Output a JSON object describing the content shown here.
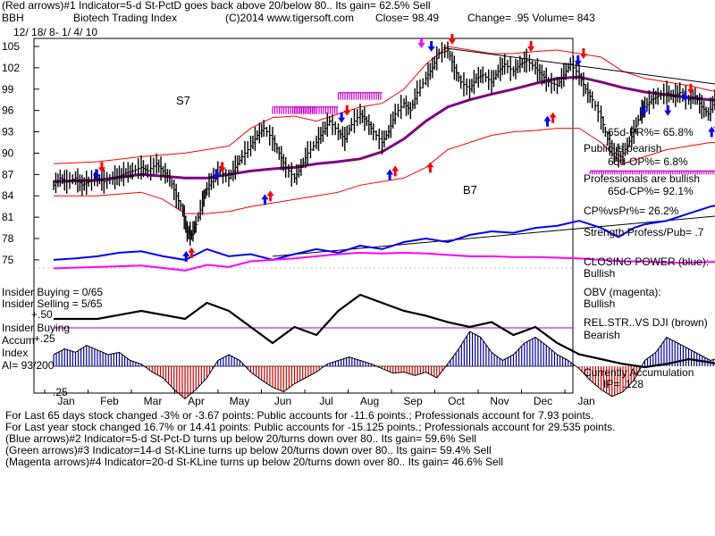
{
  "header": {
    "line1": "(Red arrows)#1 Indicator=5-d St-PctD goes back above 20/below 80.. Its gain= 62.5% Sell",
    "ticker": "BBH",
    "name": "Biotech Trading Index",
    "copyright": "(C)2014 www.tigersoft.com",
    "close": "Close=  98.49",
    "change": "Change= .95 Volume= 843",
    "daterange": "12/ 18/ 8- 1/ 4/ 10"
  },
  "right_panel": {
    "pr": "65d-PR%= 65.8%",
    "public1": "Public is bearish",
    "op": "65d-OP%= 6.8%",
    "prof": "Professionals are bullish",
    "cp": "65d-CP%= 92.1%",
    "cpvspr": "CP%vsPr%=  26.2%",
    "strength": "Strength Profess/Pub= .7",
    "cp_title": "CLOSING POWER (blue):",
    "cp_state": "Bullish",
    "obv_title": "OBV (magenta):",
    "obv_state": "Bullish",
    "rs_title": "REL.STR..VS DJI (brown)",
    "rs_state": "Bearish",
    "acc_title": "Currently Accumulation",
    "ip": "IP= .128"
  },
  "left_panel": {
    "ins_buying": "Insider Buying = 0/65",
    "ins_selling": "Insider Selling = 5/65",
    "ins_buying2": "Insider Buying",
    "accum": "Accum",
    "index": "Index",
    "ai": "AI= 93/200",
    "p50": "+.50",
    "p25": "+.25",
    "m25": "-.25"
  },
  "annotations": {
    "s7": "S7",
    "b7": "B7"
  },
  "footer": {
    "line1": "For Last 65 days stock changed -3% or -3.67 points:  Public accounts for -11.6 points.;  Professionals account for  7.93 points.",
    "line2": "For Last year stock changed  16.7% or 14.41 points:  Public accounts for -15.125 points.;  Professionals account for  29.535 points.",
    "line3": "(Blue arrows)#2 Indicator=5-d St-Pct-D turns up below 20/turns down over 80.. Its gain= 59.6% Sell",
    "line4": "(Green arrows)#3 Indicator=14-d St-KLine turns up below 20/turns down over 80.. Its gain= 59.4% Sell",
    "line5": "(Magenta arrows)#4 Indicator=20-d St-KLine turns up below 20/turns down over 80.. Its gain= 46.6% Sell"
  },
  "colors": {
    "price": "#000000",
    "ma": "#800080",
    "band": "#ff0000",
    "closing_power": "#0000ff",
    "obv": "#ff00ff",
    "relstr": "#000000",
    "accum": "#0000aa",
    "distrib": "#cc0000"
  },
  "chart_data": {
    "type": "line",
    "title": "Biotech Trading Index",
    "x_ticks": [
      "Jan",
      "Feb",
      "Mar",
      "Apr",
      "May",
      "Jun",
      "Jul",
      "Aug",
      "Sep",
      "Oct",
      "Nov",
      "Dec",
      "Jan"
    ],
    "y_ticks": [
      105,
      102,
      99,
      96,
      93,
      90,
      87,
      84,
      81,
      78,
      75
    ],
    "ylim": [
      73,
      106
    ],
    "price_close": [
      [
        0,
        85.5
      ],
      [
        0.3,
        86.5
      ],
      [
        0.6,
        86.0
      ],
      [
        1.0,
        86.5
      ],
      [
        1.3,
        85.5
      ],
      [
        1.6,
        86.0
      ],
      [
        2.0,
        86.5
      ],
      [
        2.3,
        86.0
      ],
      [
        2.7,
        86.5
      ],
      [
        3.0,
        86.8
      ],
      [
        3.3,
        87.2
      ],
      [
        3.6,
        87.5
      ],
      [
        4.0,
        88.0
      ],
      [
        4.3,
        87.5
      ],
      [
        4.7,
        88.5
      ],
      [
        5.0,
        87.5
      ],
      [
        5.3,
        86.5
      ],
      [
        5.6,
        84.0
      ],
      [
        5.9,
        82.0
      ],
      [
        6.1,
        79.0
      ],
      [
        6.3,
        78.5
      ],
      [
        6.5,
        80.0
      ],
      [
        6.8,
        83.0
      ],
      [
        7.0,
        85.0
      ],
      [
        7.3,
        86.5
      ],
      [
        7.6,
        87.5
      ],
      [
        8.0,
        86.5
      ],
      [
        8.3,
        88.0
      ],
      [
        8.6,
        89.5
      ],
      [
        9.0,
        91.0
      ],
      [
        9.3,
        92.5
      ],
      [
        9.6,
        93.5
      ],
      [
        10.0,
        92.0
      ],
      [
        10.3,
        90.0
      ],
      [
        10.6,
        88.0
      ],
      [
        11.0,
        86.5
      ],
      [
        11.3,
        88.0
      ],
      [
        11.6,
        90.0
      ],
      [
        12.0,
        91.5
      ],
      [
        12.3,
        93.0
      ],
      [
        12.6,
        94.5
      ],
      [
        13.0,
        93.0
      ],
      [
        13.3,
        92.0
      ],
      [
        13.6,
        94.0
      ],
      [
        14.0,
        95.5
      ],
      [
        14.3,
        94.5
      ],
      [
        14.6,
        93.0
      ],
      [
        15.0,
        91.5
      ],
      [
        15.3,
        93.0
      ],
      [
        15.6,
        95.5
      ],
      [
        16.0,
        97.0
      ],
      [
        16.3,
        96.0
      ],
      [
        16.6,
        98.5
      ],
      [
        17.0,
        100.5
      ],
      [
        17.3,
        102.0
      ],
      [
        17.6,
        104.0
      ],
      [
        18.0,
        104.5
      ],
      [
        18.3,
        102.0
      ],
      [
        18.6,
        100.0
      ],
      [
        19.0,
        99.0
      ],
      [
        19.3,
        100.5
      ],
      [
        19.6,
        101.0
      ],
      [
        20.0,
        100.0
      ],
      [
        20.3,
        101.5
      ],
      [
        20.6,
        102.5
      ],
      [
        21.0,
        101.5
      ],
      [
        21.3,
        102.5
      ],
      [
        21.6,
        103.0
      ],
      [
        22.0,
        102.0
      ],
      [
        22.3,
        101.0
      ],
      [
        22.6,
        100.0
      ],
      [
        23.0,
        99.5
      ],
      [
        23.3,
        101.0
      ],
      [
        23.6,
        102.5
      ],
      [
        24.0,
        101.0
      ],
      [
        24.3,
        99.0
      ],
      [
        24.6,
        97.5
      ],
      [
        25.0,
        95.0
      ],
      [
        25.3,
        92.0
      ],
      [
        25.6,
        90.0
      ],
      [
        25.9,
        89.5
      ],
      [
        26.2,
        91.0
      ],
      [
        26.5,
        93.0
      ],
      [
        26.8,
        95.5
      ],
      [
        27.0,
        96.5
      ],
      [
        27.3,
        97.5
      ],
      [
        27.6,
        98.0
      ],
      [
        28.0,
        98.5
      ],
      [
        28.3,
        98.0
      ],
      [
        28.6,
        98.5
      ],
      [
        29.0,
        97.5
      ],
      [
        29.3,
        98.0
      ],
      [
        29.6,
        96.5
      ],
      [
        29.9,
        95.5
      ],
      [
        30.2,
        97.5
      ],
      [
        30.5,
        98.0
      ],
      [
        30.8,
        98.5
      ]
    ],
    "moving_average": [
      [
        0,
        86.0
      ],
      [
        2,
        86.2
      ],
      [
        4,
        87.0
      ],
      [
        6,
        86.5
      ],
      [
        7,
        86.5
      ],
      [
        8,
        87.0
      ],
      [
        9,
        87.5
      ],
      [
        10,
        87.8
      ],
      [
        11,
        88.0
      ],
      [
        12,
        88.5
      ],
      [
        13,
        88.8
      ],
      [
        14,
        89.2
      ],
      [
        15,
        90.2
      ],
      [
        16,
        92.0
      ],
      [
        17,
        94.5
      ],
      [
        18,
        96.5
      ],
      [
        19,
        97.5
      ],
      [
        20,
        98.3
      ],
      [
        21,
        99.0
      ],
      [
        22,
        99.8
      ],
      [
        23,
        100.5
      ],
      [
        24,
        100.7
      ],
      [
        25,
        100.0
      ],
      [
        26,
        99.2
      ],
      [
        27,
        98.6
      ],
      [
        28,
        98.2
      ],
      [
        29,
        97.8
      ],
      [
        30,
        97.5
      ],
      [
        30.8,
        97.3
      ]
    ],
    "band_upper": [
      [
        0,
        88.5
      ],
      [
        2,
        88.8
      ],
      [
        4,
        89.5
      ],
      [
        6,
        90.0
      ],
      [
        8,
        91.0
      ],
      [
        9,
        93.5
      ],
      [
        10,
        95.0
      ],
      [
        11,
        95.2
      ],
      [
        12,
        94.5
      ],
      [
        13,
        95.5
      ],
      [
        14,
        96.5
      ],
      [
        15,
        97.0
      ],
      [
        16,
        99.0
      ],
      [
        17,
        102.5
      ],
      [
        18,
        105.0
      ],
      [
        19,
        104.5
      ],
      [
        20,
        104.0
      ],
      [
        21,
        104.0
      ],
      [
        22,
        104.3
      ],
      [
        23,
        104.5
      ],
      [
        24,
        104.0
      ],
      [
        25,
        103.5
      ],
      [
        26,
        101.5
      ],
      [
        27,
        100.5
      ],
      [
        28,
        100.0
      ],
      [
        29,
        99.5
      ],
      [
        30,
        98.8
      ],
      [
        30.8,
        98.5
      ]
    ],
    "band_lower": [
      [
        0,
        84.0
      ],
      [
        2,
        84.0
      ],
      [
        4,
        84.5
      ],
      [
        5,
        83.5
      ],
      [
        6,
        81.5
      ],
      [
        7,
        81.5
      ],
      [
        8,
        81.8
      ],
      [
        9,
        82.5
      ],
      [
        10,
        83.0
      ],
      [
        11,
        83.5
      ],
      [
        12,
        84.0
      ],
      [
        13,
        84.5
      ],
      [
        14,
        85.5
      ],
      [
        15,
        86.0
      ],
      [
        16,
        86.5
      ],
      [
        17,
        88.0
      ],
      [
        18,
        90.5
      ],
      [
        19,
        91.5
      ],
      [
        20,
        92.5
      ],
      [
        21,
        93.0
      ],
      [
        22,
        93.2
      ],
      [
        23,
        93.5
      ],
      [
        24,
        93.5
      ],
      [
        25,
        91.5
      ],
      [
        26,
        88.5
      ],
      [
        27,
        89.5
      ],
      [
        28,
        90.5
      ],
      [
        29,
        91.0
      ],
      [
        30,
        91.5
      ],
      [
        30.8,
        91.5
      ]
    ],
    "trendline_upper": [
      [
        17.8,
        104.8
      ],
      [
        31.5,
        99.2
      ]
    ],
    "trendline_lower": [
      [
        10,
        75.5
      ],
      [
        31.5,
        81.5
      ]
    ],
    "closing_power": [
      [
        0,
        75.0
      ],
      [
        1,
        75.2
      ],
      [
        2,
        75.5
      ],
      [
        3,
        76.0
      ],
      [
        4,
        76.2
      ],
      [
        5,
        75.5
      ],
      [
        6,
        75.0
      ],
      [
        7,
        76.5
      ],
      [
        8,
        75.5
      ],
      [
        9,
        75.8
      ],
      [
        10,
        75.0
      ],
      [
        11,
        75.8
      ],
      [
        12,
        76.5
      ],
      [
        13,
        76.0
      ],
      [
        14,
        77.0
      ],
      [
        15,
        76.5
      ],
      [
        16,
        77.5
      ],
      [
        17,
        78.0
      ],
      [
        18,
        77.5
      ],
      [
        19,
        78.5
      ],
      [
        20,
        79.0
      ],
      [
        21,
        78.8
      ],
      [
        22,
        79.5
      ],
      [
        23,
        79.8
      ],
      [
        24,
        80.5
      ],
      [
        25,
        79.5
      ],
      [
        25.8,
        78.2
      ],
      [
        26.5,
        79.5
      ],
      [
        27,
        80.0
      ],
      [
        28,
        80.5
      ],
      [
        29,
        81.5
      ],
      [
        30,
        82.5
      ],
      [
        30.8,
        83.0
      ]
    ],
    "obv": [
      [
        0,
        73.8
      ],
      [
        2,
        74.0
      ],
      [
        4,
        74.2
      ],
      [
        6,
        73.5
      ],
      [
        7,
        74.3
      ],
      [
        8,
        74.0
      ],
      [
        9,
        74.8
      ],
      [
        10,
        75.0
      ],
      [
        11,
        75.2
      ],
      [
        12,
        75.5
      ],
      [
        13,
        75.8
      ],
      [
        14,
        76.0
      ],
      [
        15,
        75.9
      ],
      [
        16,
        76.0
      ],
      [
        17,
        75.9
      ],
      [
        18,
        75.7
      ],
      [
        19,
        75.5
      ],
      [
        20,
        75.5
      ],
      [
        21,
        75.4
      ],
      [
        22,
        75.4
      ],
      [
        23,
        75.3
      ],
      [
        24,
        75.2
      ],
      [
        25,
        75.0
      ],
      [
        26,
        74.8
      ],
      [
        27,
        74.8
      ],
      [
        28,
        74.6
      ],
      [
        29,
        74.6
      ],
      [
        30,
        74.7
      ],
      [
        30.8,
        74.8
      ]
    ],
    "relative_strength": [
      [
        0,
        79.0
      ],
      [
        2,
        79.0
      ],
      [
        4,
        79.5
      ],
      [
        6,
        79.0
      ],
      [
        7,
        80.0
      ],
      [
        8,
        79.5
      ],
      [
        9,
        78.5
      ],
      [
        10,
        77.5
      ],
      [
        11,
        78.5
      ],
      [
        12,
        78.0
      ],
      [
        13,
        79.5
      ],
      [
        14,
        80.5
      ],
      [
        15,
        80.0
      ],
      [
        16,
        79.5
      ],
      [
        17,
        79.2
      ],
      [
        18,
        78.8
      ],
      [
        19,
        78.5
      ],
      [
        20,
        78.8
      ],
      [
        21,
        78.0
      ],
      [
        22,
        78.5
      ],
      [
        23,
        77.5
      ],
      [
        24,
        76.8
      ],
      [
        25,
        76.5
      ],
      [
        26,
        76.2
      ],
      [
        27,
        76.0
      ],
      [
        28,
        76.2
      ],
      [
        29,
        76.5
      ],
      [
        30,
        76.3
      ],
      [
        30.8,
        76.0
      ]
    ],
    "accumulation_index": {
      "ylim": [
        -0.3,
        0.55
      ],
      "values": [
        [
          0,
          0.1
        ],
        [
          0.5,
          0.15
        ],
        [
          1,
          0.12
        ],
        [
          1.5,
          0.18
        ],
        [
          2,
          0.14
        ],
        [
          2.5,
          0.1
        ],
        [
          3,
          0.12
        ],
        [
          3.5,
          0.05
        ],
        [
          4,
          0.02
        ],
        [
          4.5,
          -0.05
        ],
        [
          5,
          -0.1
        ],
        [
          5.5,
          -0.2
        ],
        [
          6,
          -0.28
        ],
        [
          6.5,
          -0.2
        ],
        [
          7,
          -0.1
        ],
        [
          7.5,
          0.05
        ],
        [
          8,
          0.1
        ],
        [
          8.5,
          0.05
        ],
        [
          9,
          -0.05
        ],
        [
          9.5,
          -0.12
        ],
        [
          10,
          -0.18
        ],
        [
          10.5,
          -0.22
        ],
        [
          11,
          -0.15
        ],
        [
          11.5,
          -0.1
        ],
        [
          12,
          -0.05
        ],
        [
          12.5,
          0.02
        ],
        [
          13,
          0.05
        ],
        [
          13.5,
          0.08
        ],
        [
          14,
          0.05
        ],
        [
          14.5,
          0.02
        ],
        [
          15,
          -0.02
        ],
        [
          15.5,
          -0.06
        ],
        [
          16,
          -0.05
        ],
        [
          16.5,
          -0.08
        ],
        [
          17,
          -0.05
        ],
        [
          17.5,
          -0.1
        ],
        [
          18,
          0.02
        ],
        [
          18.5,
          0.15
        ],
        [
          19,
          0.3
        ],
        [
          19.5,
          0.25
        ],
        [
          20,
          0.12
        ],
        [
          20.5,
          0.05
        ],
        [
          21,
          0.1
        ],
        [
          21.5,
          0.2
        ],
        [
          22,
          0.25
        ],
        [
          22.5,
          0.18
        ],
        [
          23,
          0.1
        ],
        [
          23.5,
          0.05
        ],
        [
          24,
          -0.02
        ],
        [
          24.5,
          -0.12
        ],
        [
          25,
          -0.2
        ],
        [
          25.5,
          -0.26
        ],
        [
          26,
          -0.22
        ],
        [
          26.5,
          -0.12
        ],
        [
          27,
          0.05
        ],
        [
          27.5,
          0.12
        ],
        [
          28,
          0.25
        ],
        [
          28.5,
          0.2
        ],
        [
          29,
          0.15
        ],
        [
          29.5,
          0.1
        ],
        [
          30,
          0.05
        ],
        [
          30.5,
          0.08
        ],
        [
          30.8,
          0.1
        ]
      ]
    },
    "arrows": {
      "red_down": [
        [
          2.2,
          88
        ],
        [
          7.7,
          88
        ],
        [
          13.4,
          96
        ],
        [
          18.2,
          106
        ],
        [
          21.8,
          105
        ],
        [
          24.2,
          104
        ],
        [
          29.1,
          99
        ],
        [
          31,
          100.5
        ]
      ],
      "red_up": [
        [
          6.3,
          76
        ],
        [
          9.9,
          84
        ],
        [
          15.6,
          87.5
        ],
        [
          17.2,
          88
        ],
        [
          22.8,
          95
        ],
        [
          30.3,
          93.5
        ]
      ],
      "blue_down": [
        [
          2.2,
          87
        ],
        [
          7.7,
          87
        ],
        [
          13.4,
          95
        ],
        [
          17.5,
          105
        ],
        [
          24.2,
          103
        ],
        [
          27.2,
          96
        ],
        [
          28.3,
          96
        ],
        [
          29.1,
          98
        ]
      ],
      "blue_up": [
        [
          6.3,
          75.5
        ],
        [
          9.9,
          83.5
        ],
        [
          15.6,
          87
        ],
        [
          22.8,
          94.5
        ],
        [
          30.3,
          93
        ]
      ],
      "magenta_down": [
        [
          17.3,
          105.5
        ]
      ]
    },
    "magenta_zones": [
      [
        10,
        95.5,
        12,
        96.5
      ],
      [
        11,
        95.5,
        13,
        96.5
      ],
      [
        13,
        97.5,
        15,
        98.5
      ],
      [
        24.5,
        87,
        31,
        87.5
      ]
    ]
  }
}
